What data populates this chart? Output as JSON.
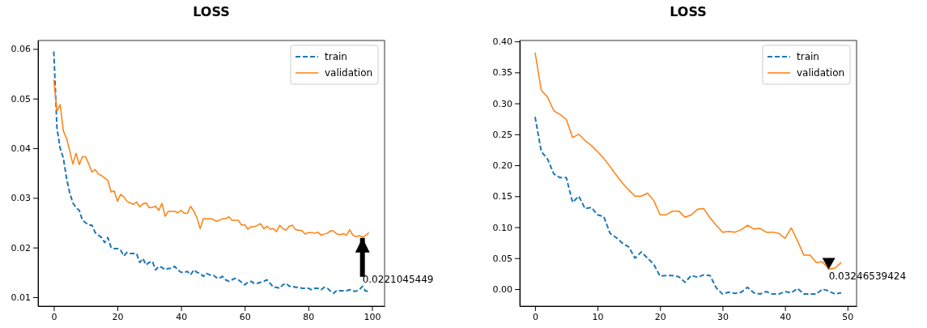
{
  "chart_data": [
    {
      "type": "line",
      "title": "LOSS",
      "legend": "top right",
      "x": [
        0,
        1,
        2,
        3,
        4,
        5,
        6,
        7,
        8,
        9,
        10,
        11,
        12,
        13,
        14,
        15,
        16,
        17,
        18,
        19,
        20,
        21,
        22,
        23,
        24,
        25,
        26,
        27,
        28,
        29,
        30,
        31,
        32,
        33,
        34,
        35,
        36,
        37,
        38,
        39,
        40,
        41,
        42,
        43,
        44,
        45,
        46,
        47,
        48,
        49,
        50,
        51,
        52,
        53,
        54,
        55,
        56,
        57,
        58,
        59,
        60,
        61,
        62,
        63,
        64,
        65,
        66,
        67,
        68,
        69,
        70,
        71,
        72,
        73,
        74,
        75,
        76,
        77,
        78,
        79,
        80,
        81,
        82,
        83,
        84,
        85,
        86,
        87,
        88,
        89,
        90,
        91,
        92,
        93,
        94,
        95,
        96,
        97,
        98,
        99
      ],
      "xlim": [
        -4.95,
        103.95
      ],
      "ylim": [
        0.0082,
        0.0617
      ],
      "xticks": [
        0,
        20,
        40,
        60,
        80,
        100
      ],
      "yticks": [
        0.01,
        0.02,
        0.03,
        0.04,
        0.05,
        0.06
      ],
      "annotations": [
        {
          "text": "0.0221045449",
          "x": 97,
          "y": 0.0221
        }
      ],
      "series": [
        {
          "name": "train",
          "color": "#1f77b4",
          "line_style": "dashed",
          "values": [
            0.0595,
            0.044,
            0.04,
            0.038,
            0.034,
            0.031,
            0.029,
            0.028,
            0.0275,
            0.0255,
            0.025,
            0.0245,
            0.0245,
            0.023,
            0.0225,
            0.022,
            0.021,
            0.022,
            0.02,
            0.0198,
            0.0198,
            0.0195,
            0.0183,
            0.019,
            0.0188,
            0.0188,
            0.0188,
            0.017,
            0.0178,
            0.0165,
            0.017,
            0.0172,
            0.0155,
            0.0162,
            0.016,
            0.0155,
            0.0158,
            0.0158,
            0.0162,
            0.0155,
            0.015,
            0.015,
            0.0152,
            0.0145,
            0.0155,
            0.015,
            0.0148,
            0.0142,
            0.0148,
            0.0145,
            0.0145,
            0.014,
            0.0138,
            0.0142,
            0.0135,
            0.0132,
            0.0135,
            0.0138,
            0.0135,
            0.013,
            0.0125,
            0.013,
            0.0132,
            0.0128,
            0.0128,
            0.013,
            0.0132,
            0.0135,
            0.0128,
            0.012,
            0.012,
            0.0118,
            0.0125,
            0.0128,
            0.0122,
            0.0122,
            0.012,
            0.012,
            0.0118,
            0.0118,
            0.0118,
            0.0115,
            0.0118,
            0.0118,
            0.0115,
            0.012,
            0.0118,
            0.0112,
            0.0108,
            0.0114,
            0.0113,
            0.0113,
            0.0113,
            0.0115,
            0.0112,
            0.0112,
            0.0115,
            0.0122,
            0.0112,
            0.0112
          ]
        },
        {
          "name": "validation",
          "color": "#ff7f0e",
          "line_style": "solid",
          "values": [
            0.0538,
            0.0475,
            0.0488,
            0.0435,
            0.042,
            0.0395,
            0.0368,
            0.039,
            0.0367,
            0.0383,
            0.0383,
            0.0368,
            0.0352,
            0.0357,
            0.0348,
            0.0345,
            0.034,
            0.0335,
            0.0312,
            0.0314,
            0.0293,
            0.0307,
            0.0302,
            0.0293,
            0.029,
            0.0287,
            0.0292,
            0.0282,
            0.0288,
            0.029,
            0.028,
            0.0281,
            0.0283,
            0.0275,
            0.0289,
            0.0263,
            0.0273,
            0.0273,
            0.0273,
            0.027,
            0.0275,
            0.0269,
            0.0269,
            0.0283,
            0.0273,
            0.026,
            0.0238,
            0.0258,
            0.0258,
            0.0258,
            0.0257,
            0.0253,
            0.0255,
            0.0258,
            0.0258,
            0.0262,
            0.0255,
            0.0255,
            0.0255,
            0.0245,
            0.0246,
            0.0237,
            0.0242,
            0.0242,
            0.0245,
            0.0248,
            0.0238,
            0.0243,
            0.0237,
            0.0238,
            0.0232,
            0.0245,
            0.0238,
            0.0235,
            0.0243,
            0.0245,
            0.0236,
            0.0235,
            0.0234,
            0.0227,
            0.023,
            0.023,
            0.0229,
            0.0231,
            0.0225,
            0.0227,
            0.0229,
            0.0234,
            0.0233,
            0.0227,
            0.0226,
            0.0228,
            0.0225,
            0.0236,
            0.0225,
            0.0222,
            0.0224,
            0.0221,
            0.0224,
            0.023
          ]
        }
      ]
    },
    {
      "type": "line",
      "title": "LOSS",
      "legend": "top right",
      "x": [
        0,
        1,
        2,
        3,
        4,
        5,
        6,
        7,
        8,
        9,
        10,
        11,
        12,
        13,
        14,
        15,
        16,
        17,
        18,
        19,
        20,
        21,
        22,
        23,
        24,
        25,
        26,
        27,
        28,
        29,
        30,
        31,
        32,
        33,
        34,
        35,
        36,
        37,
        38,
        39,
        40,
        41,
        42,
        43,
        44,
        45,
        46,
        47,
        48,
        49
      ],
      "xlim": [
        -2.45,
        51.45
      ],
      "ylim": [
        -0.0275,
        0.4015
      ],
      "xticks": [
        0,
        10,
        20,
        30,
        40,
        50
      ],
      "yticks": [
        {
          "value": 0,
          "label": "0.00"
        },
        {
          "value": 0.05,
          "label": "0.05"
        },
        {
          "value": 0.1,
          "label": "0.10"
        },
        {
          "value": 0.15,
          "label": "0.15"
        },
        {
          "value": 0.2,
          "label": "0.20"
        },
        {
          "value": 0.25,
          "label": "0.25"
        },
        {
          "value": 0.3,
          "label": "0.30"
        },
        {
          "value": 0.35,
          "label": "0.35"
        },
        {
          "value": 0.4,
          "label": "0.40"
        }
      ],
      "annotations": [
        {
          "text": "0.03246539424",
          "x": 47,
          "y": 0.032
        }
      ],
      "series": [
        {
          "name": "train",
          "color": "#1f77b4",
          "line_style": "dashed",
          "values": [
            0.278,
            0.222,
            0.21,
            0.186,
            0.18,
            0.18,
            0.14,
            0.15,
            0.13,
            0.132,
            0.12,
            0.117,
            0.09,
            0.083,
            0.074,
            0.068,
            0.05,
            0.06,
            0.05,
            0.04,
            0.021,
            0.022,
            0.022,
            0.02,
            0.011,
            0.022,
            0.019,
            0.023,
            0.022,
            0.002,
            -0.008,
            -0.005,
            -0.007,
            -0.005,
            0.003,
            -0.006,
            -0.008,
            -0.004,
            -0.008,
            -0.008,
            -0.004,
            -0.006,
            0.001,
            -0.008,
            -0.008,
            -0.008,
            0.0,
            -0.003,
            -0.008,
            -0.006
          ]
        },
        {
          "name": "validation",
          "color": "#ff7f0e",
          "line_style": "solid",
          "values": [
            0.382,
            0.321,
            0.31,
            0.288,
            0.282,
            0.274,
            0.245,
            0.25,
            0.24,
            0.232,
            0.222,
            0.211,
            0.198,
            0.184,
            0.171,
            0.16,
            0.15,
            0.15,
            0.155,
            0.143,
            0.12,
            0.12,
            0.126,
            0.126,
            0.116,
            0.12,
            0.129,
            0.13,
            0.115,
            0.103,
            0.092,
            0.093,
            0.092,
            0.096,
            0.103,
            0.097,
            0.098,
            0.092,
            0.092,
            0.09,
            0.082,
            0.099,
            0.078,
            0.055,
            0.055,
            0.043,
            0.044,
            0.032,
            0.034,
            0.043
          ]
        }
      ]
    }
  ]
}
